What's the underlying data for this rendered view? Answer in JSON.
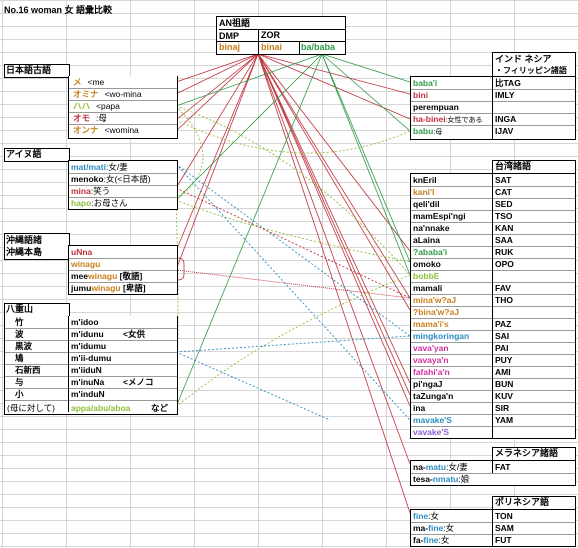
{
  "title": "No.16 woman 女 語彙比較",
  "an": {
    "title": "AN祖語",
    "sub1": "DMP",
    "sub2": "ZOR",
    "form1": "binaj",
    "form2": "binai",
    "form3": "ba/baba"
  },
  "kogo": {
    "header": "日本語古語",
    "rows": [
      {
        "word": "メ",
        "gloss": "<me"
      },
      {
        "word": "オミナ",
        "gloss": "<wo-mina"
      },
      {
        "word": "ハハ",
        "gloss": "<papa"
      },
      {
        "word": "オモ",
        "gloss": ":母"
      },
      {
        "word": "オンナ",
        "gloss": "<womina"
      }
    ]
  },
  "ainu": {
    "header": "アイヌ語",
    "rows": [
      {
        "word": "mat/mati",
        "gloss": ":女/妻"
      },
      {
        "word": "menoko",
        "gloss": ":女(<日本語)"
      },
      {
        "word": "mina",
        "gloss": ":笑う"
      },
      {
        "word": "hapo",
        "gloss": ":お母さん"
      }
    ]
  },
  "okinawa": {
    "header1": "沖縄語諸",
    "header2": "沖縄本島",
    "rows": [
      {
        "word": "uNna",
        "pre": "",
        "hl": "",
        "post": ""
      },
      {
        "word": "winagu",
        "pre": "",
        "hl": "",
        "post": ""
      },
      {
        "word": "",
        "pre": "mee",
        "hl": "winagu",
        "post": " [敬語]"
      },
      {
        "word": "",
        "pre": "jumu",
        "hl": "winagu",
        "post": " [卑語]"
      }
    ]
  },
  "yaeyama": {
    "header": "八重山",
    "rows": [
      {
        "place": "竹",
        "word": "m'idoo",
        "note": ""
      },
      {
        "place": "波",
        "word": "m'idunu",
        "note": "<女供"
      },
      {
        "place": "黒波",
        "word": "m'idumu",
        "note": ""
      },
      {
        "place": "鳩",
        "word": "m'ii-dumu",
        "note": ""
      },
      {
        "place": "石新西",
        "word": "m'iiduN",
        "note": ""
      },
      {
        "place": "与",
        "word": "m'inuNa",
        "note": "<メノコ"
      },
      {
        "place": "小",
        "word": "m'induN",
        "note": ""
      }
    ],
    "mother_label": "(母に対して)",
    "mother_forms": "appa/abu/aboa",
    "mother_suffix": "など"
  },
  "indonesia": {
    "header1": "インド ネシア",
    "header2": "・フィリッピン諸語",
    "rows": [
      {
        "word": "baba'i",
        "abbr": "比TAG",
        "color": "#2e9b47"
      },
      {
        "word": "bini",
        "abbr": "IMLY",
        "color": "#c0303a"
      },
      {
        "word": "perempuan",
        "abbr": "",
        "color": "#000000"
      },
      {
        "word": "ha-binei",
        "note": ":女性である",
        "abbr": "INGA",
        "color": "#c0303a"
      },
      {
        "word": "babu",
        "note": ":母",
        "abbr": "IJAV",
        "color": "#2e9b47"
      }
    ]
  },
  "taiwan": {
    "header": "台湾諸語",
    "rows": [
      {
        "word": "knEril",
        "abbr": "SAT",
        "color": "#000000"
      },
      {
        "word": "kani'l",
        "abbr": "CAT",
        "color": "#c77f1a"
      },
      {
        "word": "qeli'dil",
        "abbr": "SED",
        "color": "#000000"
      },
      {
        "word": "mamEspi'ngi",
        "abbr": "TSO",
        "color": "#000000"
      },
      {
        "word": "na'nnake",
        "abbr": "KAN",
        "color": "#000000"
      },
      {
        "word": "aLaina",
        "abbr": "SAA",
        "color": "#000000"
      },
      {
        "word": "?ababa'i",
        "abbr": "RUK",
        "color": "#2e9b47"
      },
      {
        "word": "omoko",
        "abbr": "OPO",
        "color": "#000000"
      },
      {
        "word": "bobbE",
        "abbr": "",
        "color": "#8fbf3a"
      },
      {
        "word": "mamali",
        "abbr": "FAV",
        "color": "#000000"
      },
      {
        "word": "mina'w?aJ",
        "abbr": "THO",
        "color": "#c77f1a"
      },
      {
        "word": "?bina'w?aJ",
        "abbr": "",
        "color": "#c77f1a"
      },
      {
        "word": "mama'i's",
        "abbr": "PAZ",
        "color": "#c77f1a"
      },
      {
        "word": "mingkoringan",
        "abbr": "SAI",
        "color": "#2b8cc4"
      },
      {
        "word": "vava'yan",
        "abbr": "PAI",
        "color": "#d12fa0"
      },
      {
        "word": "vavaya'n",
        "abbr": "PUY",
        "color": "#d12fa0"
      },
      {
        "word": "fafahi'a'n",
        "abbr": "AMI",
        "color": "#d12fa0"
      },
      {
        "word": "pi'ngaJ",
        "abbr": "BUN",
        "color": "#000000"
      },
      {
        "word": "taZunga'n",
        "abbr": "KUV",
        "color": "#000000"
      },
      {
        "word": "ina",
        "abbr": "SIR",
        "color": "#000000"
      },
      {
        "word": "mavake'S",
        "abbr": "YAM",
        "color": "#2b8cc4"
      },
      {
        "word": "vavake'S",
        "abbr": "",
        "color": "#8a63d2"
      }
    ]
  },
  "melanesia": {
    "header": "メラネシア諸語",
    "rows": [
      {
        "pre": "na-",
        "hl": "matu",
        "post": ":女/妻",
        "abbr": "FAT"
      },
      {
        "pre": "tesa-",
        "hl": "nmatu",
        "post": ":娘",
        "abbr": ""
      }
    ]
  },
  "polynesia": {
    "header": "ポリネシア語",
    "rows": [
      {
        "pre": "",
        "hl": "fine",
        "post": ":女",
        "abbr": "TON"
      },
      {
        "pre": "ma-",
        "hl": "fine",
        "post": ":女",
        "abbr": "SAM"
      },
      {
        "pre": "fa-",
        "hl": "fine",
        "post": ":女",
        "abbr": "FUT"
      }
    ]
  },
  "colors": {
    "red": "#c0303a",
    "orange": "#c77f1a",
    "green": "#2e9b47",
    "lightgreen": "#8fbf3a",
    "blue": "#2b8cc4",
    "magenta": "#d12fa0",
    "purple": "#8a63d2"
  }
}
